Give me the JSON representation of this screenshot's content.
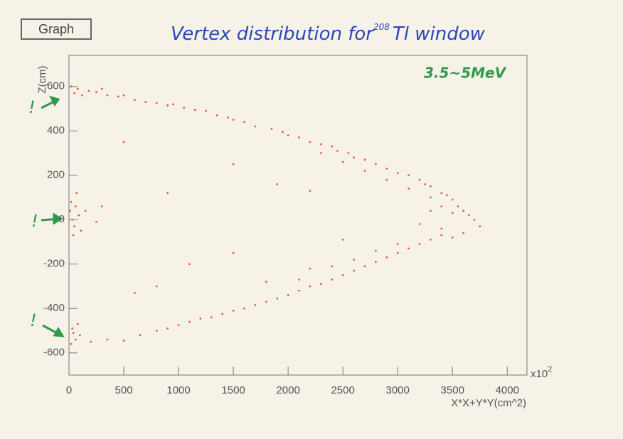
{
  "chart_data": {
    "type": "scatter",
    "frame_label": "Graph",
    "title": "Vertex distribution for",
    "title_superscript": "208",
    "title_end": "Tl window",
    "subtitle": "3.5~5MeV",
    "y_label": "Z(cm)",
    "x_label": "X*X+Y*Y(cm^2)",
    "x_multiplier": "x10",
    "x_multiplier_exponent": "2",
    "annotations": [
      "!",
      "!",
      "!"
    ],
    "xlim": [
      0,
      4180
    ],
    "ylim": [
      -700,
      740
    ],
    "xticks": [
      0,
      500,
      1000,
      1500,
      2000,
      2500,
      3000,
      3500,
      4000
    ],
    "yticks": [
      -600,
      -400,
      -200,
      0,
      200,
      400,
      600
    ],
    "series": [
      {
        "color": "#e9553c",
        "x": [
          20,
          50,
          80,
          120,
          180,
          250,
          300,
          350,
          450,
          500,
          600,
          700,
          800,
          900,
          950,
          1050,
          1150,
          1250,
          1350,
          1450,
          1500,
          1600,
          1700,
          1850,
          1950,
          2000,
          2100,
          2200,
          2300,
          2400,
          2450,
          2550,
          2600,
          2700,
          2800,
          2900,
          3000,
          3100,
          3200,
          3250,
          3300,
          3400,
          3450,
          3500,
          3550,
          3600,
          3650,
          3700,
          3750,
          2300,
          2500,
          2700,
          2900,
          3100,
          3300,
          3400,
          3500,
          3300,
          3200,
          3400,
          3500,
          3600,
          20,
          60,
          100,
          30,
          80,
          40,
          200,
          350,
          500,
          650,
          800,
          900,
          1000,
          1100,
          1200,
          1300,
          1400,
          1500,
          1600,
          1700,
          1800,
          1900,
          2000,
          2100,
          2200,
          2300,
          2400,
          2500,
          2600,
          2700,
          2800,
          2900,
          3000,
          3100,
          3200,
          3300,
          3400,
          2200,
          2400,
          2600,
          2800,
          3000,
          1800,
          2100,
          10,
          30,
          50,
          20,
          60,
          90,
          110,
          40,
          150,
          70,
          250,
          300,
          500,
          900,
          1500,
          1100,
          1500,
          1900,
          2200,
          2500,
          800,
          600
        ],
        "values": [
          600,
          570,
          590,
          560,
          580,
          575,
          590,
          560,
          555,
          560,
          540,
          530,
          525,
          515,
          520,
          505,
          495,
          490,
          470,
          460,
          450,
          440,
          420,
          410,
          395,
          380,
          370,
          350,
          340,
          330,
          310,
          300,
          280,
          270,
          250,
          230,
          210,
          200,
          180,
          160,
          150,
          120,
          110,
          90,
          60,
          40,
          20,
          0,
          -30,
          300,
          260,
          220,
          180,
          140,
          100,
          60,
          30,
          40,
          -20,
          -40,
          -80,
          -60,
          -560,
          -540,
          -520,
          -490,
          -470,
          -510,
          -550,
          -540,
          -545,
          -520,
          -500,
          -490,
          -475,
          -460,
          -445,
          -440,
          -425,
          -410,
          -400,
          -385,
          -370,
          -355,
          -340,
          -320,
          -300,
          -290,
          -270,
          -250,
          -230,
          -210,
          -190,
          -170,
          -150,
          -130,
          -110,
          -90,
          -70,
          -220,
          -210,
          -180,
          -140,
          -110,
          -280,
          -270,
          40,
          0,
          -30,
          80,
          60,
          20,
          -50,
          -70,
          40,
          120,
          -10,
          60,
          350,
          120,
          250,
          -200,
          -150,
          160,
          130,
          -90,
          -300,
          -330
        ]
      }
    ]
  }
}
